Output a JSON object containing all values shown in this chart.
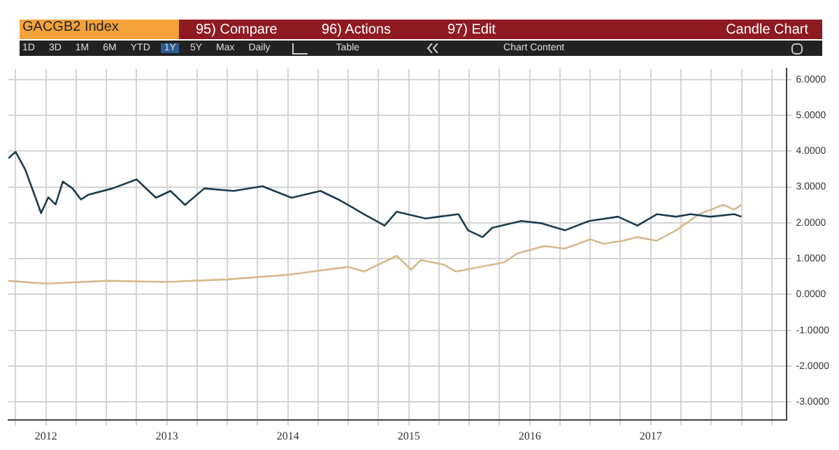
{
  "chart_data": {
    "type": "line",
    "title": "GACGB2 Index",
    "annotations": [
      "95) Compare",
      "96) Actions",
      "97) Edit",
      "Candle Chart",
      "1D",
      "3D",
      "1M",
      "6M",
      "YTD",
      "1Y",
      "5Y",
      "Max",
      "Daily",
      "Table",
      "Chart Content"
    ],
    "series": [
      {
        "color": "#1f3c4f",
        "x": [
          2012.19,
          2012.25,
          2012.33,
          2012.42,
          2012.46,
          2012.52,
          2012.58,
          2012.64,
          2012.72,
          2012.79,
          2012.85,
          2013.05,
          2013.25,
          2013.41,
          2013.53,
          2013.65,
          2013.81,
          2014.05,
          2014.29,
          2014.53,
          2014.77,
          2014.93,
          2015.13,
          2015.3,
          2015.4,
          2015.64,
          2015.75,
          2015.91,
          2015.99,
          2016.11,
          2016.19,
          2016.43,
          2016.59,
          2016.79,
          2016.99,
          2017.23,
          2017.39,
          2017.55,
          2017.71,
          2017.83,
          2017.99,
          2018.19,
          2018.25
        ],
        "values": [
          3.8,
          3.98,
          3.48,
          2.65,
          2.27,
          2.71,
          2.51,
          3.15,
          2.96,
          2.65,
          2.78,
          2.96,
          3.21,
          2.7,
          2.89,
          2.5,
          2.96,
          2.89,
          3.02,
          2.7,
          2.89,
          2.63,
          2.24,
          1.92,
          2.31,
          2.12,
          2.17,
          2.24,
          1.79,
          1.6,
          1.86,
          2.05,
          1.99,
          1.79,
          2.05,
          2.17,
          1.92,
          2.24,
          2.17,
          2.24,
          2.17,
          2.24,
          2.17
        ]
      },
      {
        "color": "#d8b98c",
        "x": [
          2012.19,
          2012.5,
          2013.0,
          2013.5,
          2014.0,
          2014.5,
          2015.0,
          2015.13,
          2015.4,
          2015.52,
          2015.6,
          2015.79,
          2015.89,
          2016.19,
          2016.29,
          2016.4,
          2016.62,
          2016.79,
          2017.0,
          2017.11,
          2017.27,
          2017.39,
          2017.55,
          2017.71,
          2017.9,
          2018.1,
          2018.19,
          2018.25
        ],
        "values": [
          0.38,
          0.3,
          0.38,
          0.35,
          0.42,
          0.55,
          0.77,
          0.64,
          1.08,
          0.69,
          0.96,
          0.83,
          0.64,
          0.83,
          0.9,
          1.15,
          1.35,
          1.28,
          1.54,
          1.41,
          1.5,
          1.6,
          1.5,
          1.79,
          2.24,
          2.5,
          2.37,
          2.5
        ]
      }
    ],
    "xlim": [
      2012.19,
      2018.62
    ],
    "xticks": [
      {
        "value": 2012.25,
        "label": null
      },
      {
        "value": 2012.5,
        "label": "2012"
      },
      {
        "value": 2012.75,
        "label": null
      },
      {
        "value": 2013,
        "label": null
      },
      {
        "value": 2013.25,
        "label": null
      },
      {
        "value": 2013.5,
        "label": "2013"
      },
      {
        "value": 2013.75,
        "label": null
      },
      {
        "value": 2014,
        "label": null
      },
      {
        "value": 2014.25,
        "label": null
      },
      {
        "value": 2014.5,
        "label": "2014"
      },
      {
        "value": 2014.75,
        "label": null
      },
      {
        "value": 2015,
        "label": null
      },
      {
        "value": 2015.25,
        "label": null
      },
      {
        "value": 2015.5,
        "label": "2015"
      },
      {
        "value": 2015.75,
        "label": null
      },
      {
        "value": 2016,
        "label": null
      },
      {
        "value": 2016.25,
        "label": null
      },
      {
        "value": 2016.5,
        "label": "2016"
      },
      {
        "value": 2016.75,
        "label": null
      },
      {
        "value": 2017,
        "label": null
      },
      {
        "value": 2017.25,
        "label": null
      },
      {
        "value": 2017.5,
        "label": "2017"
      },
      {
        "value": 2017.75,
        "label": null
      },
      {
        "value": 2018,
        "label": null
      },
      {
        "value": 2018.25,
        "label": null
      },
      {
        "value": 2018.5,
        "label": null
      }
    ],
    "ylim": [
      -3.5,
      6.3
    ],
    "yticks": [
      {
        "value": -3,
        "label": "-3.0000"
      },
      {
        "value": -2,
        "label": "-2.0000"
      },
      {
        "value": -1,
        "label": "-1.0000"
      },
      {
        "value": 0,
        "label": "0.0000"
      },
      {
        "value": 1,
        "label": "1.0000"
      },
      {
        "value": 2,
        "label": "2.0000"
      },
      {
        "value": 3,
        "label": "3.0000"
      },
      {
        "value": 4,
        "label": "4.0000"
      },
      {
        "value": 5,
        "label": "5.0000"
      },
      {
        "value": 6,
        "label": "6.0000"
      }
    ],
    "grid": true,
    "legend": false,
    "marker": "none",
    "line_style": "solid"
  }
}
